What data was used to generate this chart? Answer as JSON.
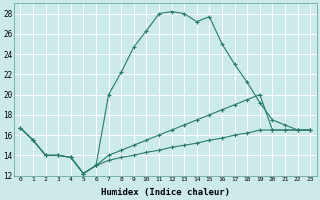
{
  "xlabel": "Humidex (Indice chaleur)",
  "bg_color": "#cceaea",
  "grid_color": "#ffffff",
  "line_color": "#2a7a6a",
  "xlim": [
    -0.5,
    23.5
  ],
  "ylim": [
    12,
    29
  ],
  "xticks": [
    0,
    1,
    2,
    3,
    4,
    5,
    6,
    7,
    8,
    9,
    10,
    11,
    12,
    13,
    14,
    15,
    16,
    17,
    18,
    19,
    20,
    21,
    22,
    23
  ],
  "yticks": [
    12,
    14,
    16,
    18,
    20,
    22,
    24,
    26,
    28
  ],
  "line1_x": [
    0,
    1,
    2,
    3,
    4,
    5,
    6,
    7,
    8,
    9,
    10,
    11,
    12,
    13,
    14,
    15,
    16,
    17,
    18,
    19,
    20,
    21,
    22,
    23
  ],
  "line1_y": [
    16.7,
    15.5,
    14.0,
    14.0,
    13.8,
    12.2,
    13.0,
    20.0,
    22.2,
    24.7,
    26.3,
    28.0,
    28.2,
    28.0,
    27.2,
    27.7,
    25.0,
    23.0,
    21.2,
    19.2,
    17.5,
    17.0,
    16.5,
    16.5
  ],
  "line2_x": [
    0,
    1,
    2,
    3,
    4,
    5,
    6,
    7,
    8,
    9,
    10,
    11,
    12,
    13,
    14,
    15,
    16,
    17,
    18,
    19,
    20,
    21,
    22,
    23
  ],
  "line2_y": [
    16.7,
    15.5,
    14.0,
    14.0,
    13.8,
    12.2,
    13.0,
    14.0,
    14.5,
    15.0,
    15.5,
    16.0,
    16.5,
    17.0,
    17.5,
    18.0,
    18.5,
    19.0,
    19.5,
    20.0,
    16.5,
    16.5,
    16.5,
    16.5
  ],
  "line3_x": [
    0,
    1,
    2,
    3,
    4,
    5,
    6,
    7,
    8,
    9,
    10,
    11,
    12,
    13,
    14,
    15,
    16,
    17,
    18,
    19,
    20,
    21,
    22,
    23
  ],
  "line3_y": [
    16.7,
    15.5,
    14.0,
    14.0,
    13.8,
    12.2,
    13.0,
    13.5,
    13.8,
    14.0,
    14.3,
    14.5,
    14.8,
    15.0,
    15.2,
    15.5,
    15.7,
    16.0,
    16.2,
    16.5,
    16.5,
    16.5,
    16.5,
    16.5
  ]
}
